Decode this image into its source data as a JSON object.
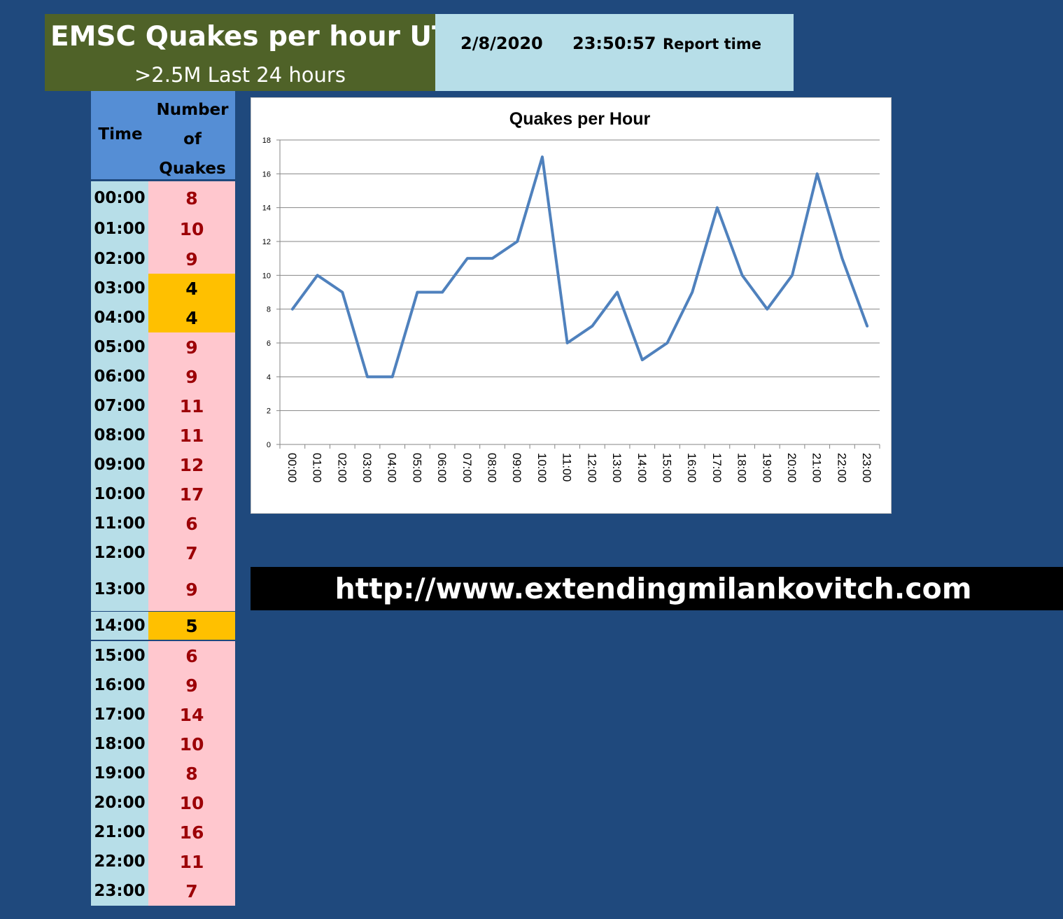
{
  "header": {
    "title": "EMSC Quakes per hour UTC",
    "subtitle": ">2.5M Last 24 hours",
    "report_date": "2/8/2020",
    "report_time": "23:50:57",
    "report_label": "Report time"
  },
  "table": {
    "col_time": "Time",
    "col_count_lines": [
      "Number",
      "of",
      "Quakes"
    ],
    "rows": [
      {
        "time": "00:00",
        "count": "8"
      },
      {
        "time": "01:00",
        "count": "10"
      },
      {
        "time": "02:00",
        "count": "9"
      },
      {
        "time": "03:00",
        "count": "4"
      },
      {
        "time": "04:00",
        "count": "4"
      },
      {
        "time": "05:00",
        "count": "9"
      },
      {
        "time": "06:00",
        "count": "9"
      },
      {
        "time": "07:00",
        "count": "11"
      },
      {
        "time": "08:00",
        "count": "11"
      },
      {
        "time": "09:00",
        "count": "12"
      },
      {
        "time": "10:00",
        "count": "17"
      },
      {
        "time": "11:00",
        "count": "6"
      },
      {
        "time": "12:00",
        "count": "7"
      },
      {
        "time": "13:00",
        "count": "9"
      },
      {
        "time": "14:00",
        "count": "5"
      },
      {
        "time": "15:00",
        "count": "6"
      },
      {
        "time": "16:00",
        "count": "9"
      },
      {
        "time": "17:00",
        "count": "14"
      },
      {
        "time": "18:00",
        "count": "10"
      },
      {
        "time": "19:00",
        "count": "8"
      },
      {
        "time": "20:00",
        "count": "10"
      },
      {
        "time": "21:00",
        "count": "16"
      },
      {
        "time": "22:00",
        "count": "11"
      },
      {
        "time": "23:00",
        "count": "7"
      }
    ]
  },
  "colors": {
    "background": "#1f497d",
    "title_bg": "#4f6228",
    "report_bg": "#b7dee8",
    "header_bg": "#558ed5",
    "time_cell_bg": "#b7dee8",
    "count_cell_bg": "#ffc7ce",
    "count_text": "#9c0006",
    "low_count_bg": "#ffc000",
    "line": "#4f81bd"
  },
  "chart_data": {
    "type": "line",
    "title": "Quakes per Hour",
    "xlabel": "",
    "ylabel": "",
    "categories": [
      "00:00",
      "01:00",
      "02:00",
      "03:00",
      "04:00",
      "05:00",
      "06:00",
      "07:00",
      "08:00",
      "09:00",
      "10:00",
      "11:00",
      "12:00",
      "13:00",
      "14:00",
      "15:00",
      "16:00",
      "17:00",
      "18:00",
      "19:00",
      "20:00",
      "21:00",
      "22:00",
      "23:00"
    ],
    "values": [
      8,
      10,
      9,
      4,
      4,
      9,
      9,
      11,
      11,
      12,
      17,
      6,
      7,
      9,
      5,
      6,
      9,
      14,
      10,
      8,
      10,
      16,
      11,
      7
    ],
    "ylim": [
      0,
      18
    ],
    "yticks": [
      0,
      2,
      4,
      6,
      8,
      10,
      12,
      14,
      16,
      18
    ],
    "grid": true,
    "legend": "none"
  },
  "footer": {
    "url": "http://www.extendingmilankovitch.com"
  }
}
